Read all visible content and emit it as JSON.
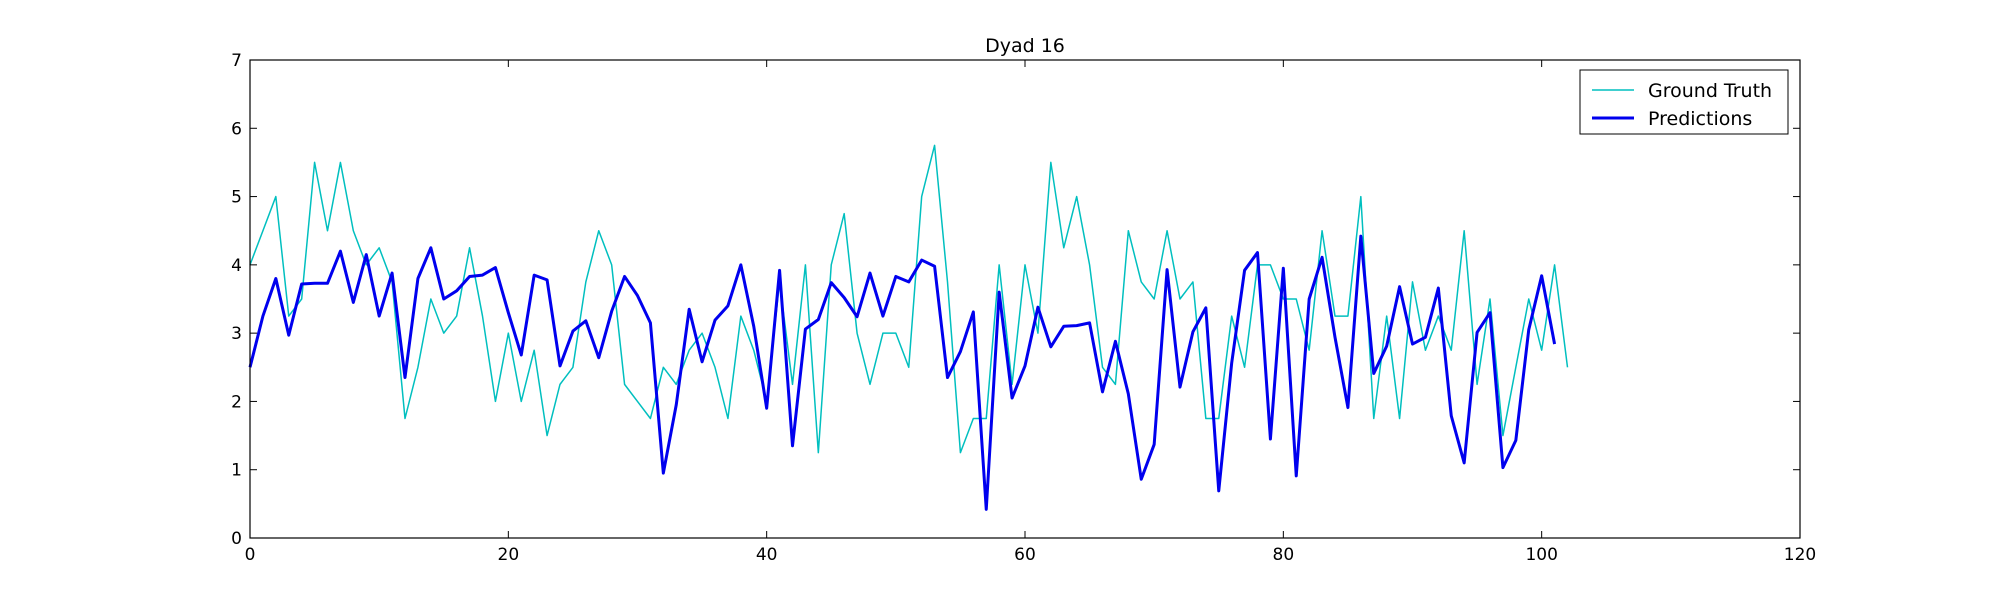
{
  "chart_data": {
    "type": "line",
    "title": "Dyad 16",
    "xlabel": "",
    "ylabel": "",
    "xlim": [
      0,
      120
    ],
    "ylim": [
      0,
      7
    ],
    "xticks": [
      0,
      20,
      40,
      60,
      80,
      100,
      120
    ],
    "yticks": [
      0,
      1,
      2,
      3,
      4,
      5,
      6,
      7
    ],
    "grid": false,
    "legend_position": "top-right",
    "series": [
      {
        "name": "Ground Truth",
        "color": "#00bfbf",
        "line_style": "thin",
        "x": [
          0,
          1,
          2,
          3,
          4,
          5,
          6,
          7,
          8,
          9,
          10,
          11,
          12,
          13,
          14,
          15,
          16,
          17,
          18,
          19,
          20,
          21,
          22,
          23,
          24,
          25,
          26,
          27,
          28,
          29,
          30,
          31,
          32,
          33,
          34,
          35,
          36,
          37,
          38,
          39,
          40,
          41,
          42,
          43,
          44,
          45,
          46,
          47,
          48,
          49,
          50,
          51,
          52,
          53,
          54,
          55,
          56,
          57,
          58,
          59,
          60,
          61,
          62,
          63,
          64,
          65,
          66,
          67,
          68,
          69,
          70,
          71,
          72,
          73,
          74,
          75,
          76,
          77,
          78,
          79,
          80,
          81,
          82,
          83,
          84,
          85,
          86,
          87,
          88,
          89,
          90,
          91,
          92,
          93,
          94,
          95,
          96,
          97,
          98,
          99,
          100,
          101,
          102
        ],
        "y": [
          4.0,
          4.5,
          5.0,
          3.25,
          3.5,
          5.5,
          4.5,
          5.5,
          4.5,
          4.0,
          4.25,
          3.75,
          1.75,
          2.5,
          3.5,
          3.0,
          3.25,
          4.25,
          3.25,
          2.0,
          3.0,
          2.0,
          2.75,
          1.5,
          2.25,
          2.5,
          3.75,
          4.5,
          4.0,
          2.25,
          2.0,
          1.75,
          2.5,
          2.25,
          2.75,
          3.0,
          2.5,
          1.75,
          3.25,
          2.75,
          2.0,
          3.75,
          2.25,
          4.0,
          1.25,
          4.0,
          4.75,
          3.0,
          2.25,
          3.0,
          3.0,
          2.5,
          5.0,
          5.75,
          3.75,
          1.25,
          1.75,
          1.75,
          4.0,
          2.25,
          4.0,
          3.0,
          5.5,
          4.25,
          5.0,
          4.0,
          2.5,
          2.25,
          4.5,
          3.75,
          3.5,
          4.5,
          3.5,
          3.75,
          1.75,
          1.75,
          3.25,
          2.5,
          4.0,
          4.0,
          3.5,
          3.5,
          2.75,
          4.5,
          3.25,
          3.25,
          5.0,
          1.75,
          3.25,
          1.75,
          3.75,
          2.75,
          3.25,
          2.75,
          4.5,
          2.25,
          3.5,
          1.5,
          2.5,
          3.5,
          2.75,
          4.0,
          2.5
        ]
      },
      {
        "name": "Predictions",
        "color": "#0000ee",
        "line_style": "thick",
        "x": [
          0,
          1,
          2,
          3,
          4,
          5,
          6,
          7,
          8,
          9,
          10,
          11,
          12,
          13,
          14,
          15,
          16,
          17,
          18,
          19,
          20,
          21,
          22,
          23,
          24,
          25,
          26,
          27,
          28,
          29,
          30,
          31,
          32,
          33,
          34,
          35,
          36,
          37,
          38,
          39,
          40,
          41,
          42,
          43,
          44,
          45,
          46,
          47,
          48,
          49,
          50,
          51,
          52,
          53,
          54,
          55,
          56,
          57,
          58,
          59,
          60,
          61,
          62,
          63,
          64,
          65,
          66,
          67,
          68,
          69,
          70,
          71,
          72,
          73,
          74,
          75,
          76,
          77,
          78,
          79,
          80,
          81,
          82,
          83,
          84,
          85,
          86,
          87,
          88,
          89,
          90,
          91,
          92,
          93,
          94,
          95,
          96,
          97,
          98,
          99,
          100,
          101
        ],
        "y": [
          2.5,
          3.25,
          3.8,
          2.97,
          3.72,
          3.73,
          3.73,
          4.2,
          3.45,
          4.15,
          3.25,
          3.88,
          2.35,
          3.8,
          4.25,
          3.5,
          3.62,
          3.83,
          3.85,
          3.96,
          3.3,
          2.68,
          3.85,
          3.78,
          2.52,
          3.03,
          3.18,
          2.64,
          3.32,
          3.83,
          3.55,
          3.15,
          0.95,
          1.95,
          3.35,
          2.58,
          3.19,
          3.4,
          4.0,
          3.1,
          1.9,
          3.92,
          1.35,
          3.06,
          3.2,
          3.74,
          3.52,
          3.24,
          3.88,
          3.25,
          3.83,
          3.75,
          4.07,
          3.98,
          2.35,
          2.73,
          3.31,
          0.42,
          3.6,
          2.05,
          2.52,
          3.38,
          2.8,
          3.1,
          3.11,
          3.15,
          2.14,
          2.88,
          2.11,
          0.86,
          1.37,
          3.93,
          2.21,
          3.02,
          3.37,
          0.69,
          2.56,
          3.92,
          4.18,
          1.45,
          3.95,
          0.91,
          3.5,
          4.11,
          2.94,
          1.91,
          4.42,
          2.41,
          2.81,
          3.68,
          2.84,
          2.94,
          3.66,
          1.79,
          1.1,
          3.01,
          3.3,
          1.03,
          1.43,
          3.05,
          3.84,
          2.84
        ]
      }
    ]
  }
}
